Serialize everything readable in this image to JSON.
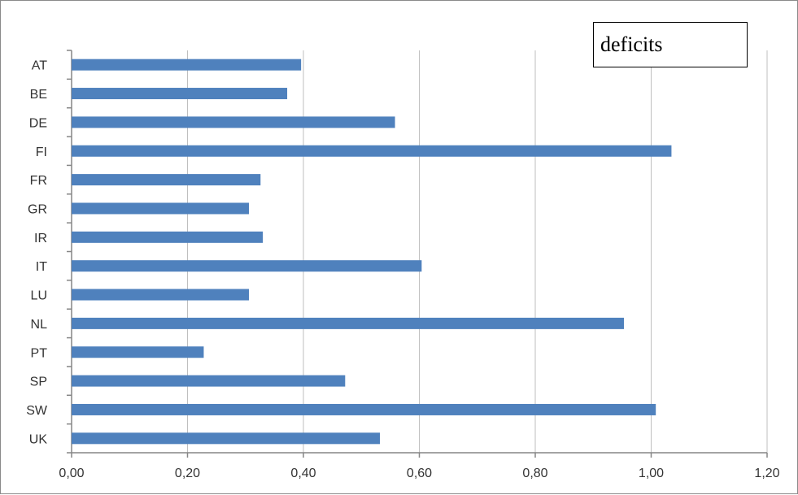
{
  "chart_data": {
    "type": "bar",
    "orientation": "horizontal",
    "categories": [
      "AT",
      "BE",
      "DE",
      "FI",
      "FR",
      "GR",
      "IR",
      "IT",
      "LU",
      "NL",
      "PT",
      "SP",
      "SW",
      "UK"
    ],
    "values": [
      0.396,
      0.372,
      0.558,
      1.035,
      0.326,
      0.306,
      0.33,
      0.604,
      0.306,
      0.953,
      0.228,
      0.472,
      1.008,
      0.532
    ],
    "legend": "deficits",
    "legend_position": "top-right",
    "xlim": [
      0,
      1.2
    ],
    "x_ticks": [
      "0,00",
      "0,20",
      "0,40",
      "0,60",
      "0,80",
      "1,00",
      "1,20"
    ],
    "x_tick_values": [
      0,
      0.2,
      0.4,
      0.6,
      0.8,
      1.0,
      1.2
    ],
    "grid": true,
    "bar_color": "#4f81bd",
    "grid_color": "#bfbfbf",
    "axis_color": "#868686"
  }
}
